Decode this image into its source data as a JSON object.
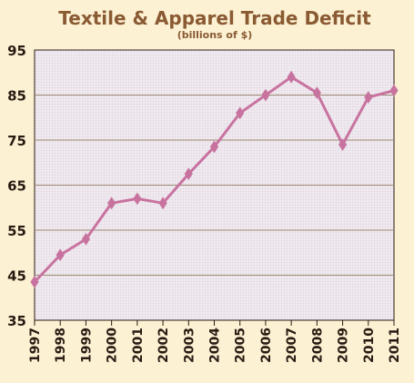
{
  "chart_data": {
    "type": "line",
    "title": "Textile & Apparel Trade Deficit",
    "subtitle": "(billions of $)",
    "xlabel": "",
    "ylabel": "",
    "x": [
      "1997",
      "1998",
      "1999",
      "2000",
      "2001",
      "2002",
      "2003",
      "2004",
      "2005",
      "2006",
      "2007",
      "2008",
      "2009",
      "2010",
      "2011"
    ],
    "series": [
      {
        "values": [
          43.5,
          49.5,
          53,
          61,
          62,
          61,
          67.5,
          73.5,
          81,
          85,
          89,
          85.5,
          74,
          84.5,
          86
        ]
      }
    ],
    "ylim": [
      35,
      95
    ],
    "yticks": [
      35,
      45,
      55,
      65,
      75,
      85,
      95
    ],
    "grid": true,
    "colors": {
      "line": "#c8739f",
      "marker": "#c8739f",
      "grid": "#9c8a72",
      "plot_bg": "#ede7ee",
      "page_bg": "#fcf1d3",
      "title": "#8a5a33"
    }
  }
}
